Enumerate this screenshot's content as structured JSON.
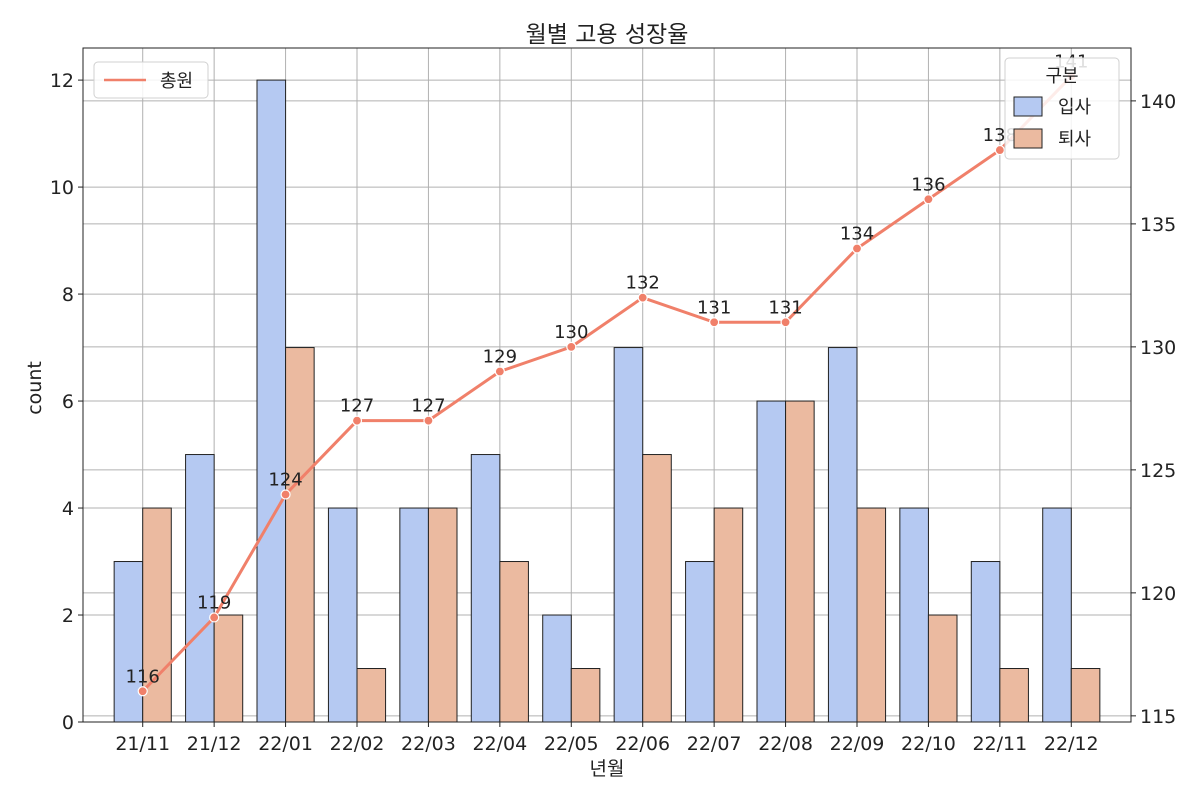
{
  "chart_data": {
    "type": "bar",
    "title": "월별 고용 성장율",
    "xlabel": "년월",
    "ylabel": "count",
    "categories": [
      "21/11",
      "21/12",
      "22/01",
      "22/02",
      "22/03",
      "22/04",
      "22/05",
      "22/06",
      "22/07",
      "22/08",
      "22/09",
      "22/10",
      "22/11",
      "22/12"
    ],
    "series": [
      {
        "name": "입사",
        "values": [
          3,
          5,
          12,
          4,
          4,
          5,
          2,
          7,
          3,
          6,
          7,
          4,
          3,
          4
        ],
        "color": "#b5c9f2"
      },
      {
        "name": "퇴사",
        "values": [
          4,
          2,
          7,
          1,
          4,
          3,
          1,
          5,
          4,
          6,
          4,
          2,
          1,
          1
        ],
        "color": "#ebbaa0"
      }
    ],
    "line_series": {
      "name": "총원",
      "values": [
        116,
        119,
        124,
        127,
        127,
        129,
        130,
        132,
        131,
        131,
        134,
        136,
        138,
        141
      ],
      "color": "#f0806a",
      "data_labels": true
    },
    "ylim": [
      0,
      12.6
    ],
    "yticks": [
      0,
      2,
      4,
      6,
      8,
      10,
      12
    ],
    "y2lim": [
      114.75,
      142.15
    ],
    "y2ticks": [
      115,
      120,
      125,
      130,
      135,
      140
    ],
    "grid": true,
    "legend_bars": {
      "title": "구분",
      "placement": "top-right"
    },
    "legend_line": {
      "placement": "top-left"
    }
  }
}
